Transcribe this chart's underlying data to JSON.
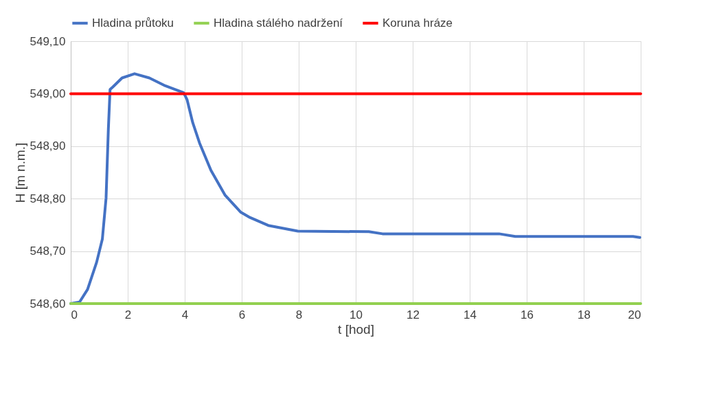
{
  "chart_data": {
    "type": "line",
    "xlabel": "t [hod]",
    "ylabel": "H [m n.m.]",
    "xlim": [
      0,
      20
    ],
    "xticks": [
      0,
      2,
      4,
      6,
      8,
      10,
      12,
      14,
      16,
      18,
      20
    ],
    "ylim": [
      548.6,
      549.1
    ],
    "yticks": [
      {
        "value": 548.6,
        "label": "548,60"
      },
      {
        "value": 548.7,
        "label": "548,70"
      },
      {
        "value": 548.8,
        "label": "548,80"
      },
      {
        "value": 548.9,
        "label": "548,90"
      },
      {
        "value": 549.0,
        "label": "549,00"
      },
      {
        "value": 549.1,
        "label": "549,10"
      }
    ],
    "grid": true,
    "legend": "top",
    "marker": "none",
    "line_style": "solid",
    "series": [
      {
        "name": "Hladina průtoku",
        "color": "#4472c4",
        "x": [
          0,
          0.31,
          0.59,
          0.91,
          1.11,
          1.24,
          1.32,
          1.38,
          1.48,
          1.8,
          2.24,
          2.76,
          3.32,
          3.96,
          4.08,
          4.28,
          4.52,
          4.92,
          5.41,
          5.97,
          6.29,
          6.93,
          7.97,
          10.46,
          10.94,
          15.03,
          15.6,
          19.73,
          19.97
        ],
        "values": [
          548.6,
          548.603,
          548.627,
          548.679,
          548.723,
          548.801,
          548.932,
          549.008,
          549.013,
          549.03,
          549.038,
          549.03,
          549.015,
          549.002,
          548.989,
          548.945,
          548.906,
          548.854,
          548.807,
          548.774,
          548.764,
          548.749,
          548.738,
          548.737,
          548.733,
          548.733,
          548.728,
          548.728,
          548.726
        ]
      },
      {
        "name": "Hladina stálého nadržení",
        "color": "#92d050",
        "x": [
          0,
          20
        ],
        "values": [
          548.6,
          548.6
        ]
      },
      {
        "name": "Koruna hráze",
        "color": "#ff0000",
        "x": [
          0,
          20
        ],
        "values": [
          549.0,
          549.0
        ]
      }
    ]
  }
}
